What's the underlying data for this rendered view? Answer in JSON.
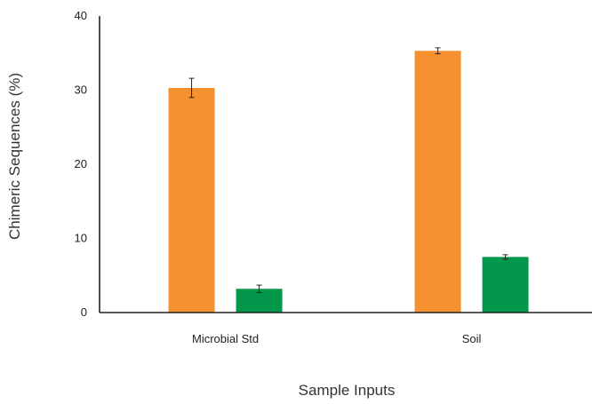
{
  "chart_data": {
    "type": "bar",
    "title": "",
    "xlabel": "Sample Inputs",
    "ylabel": "Chimeric Sequences (%)",
    "ylim": [
      0,
      40
    ],
    "yticks": [
      "0",
      "10",
      "20",
      "30",
      "40"
    ],
    "categories": [
      "Microbial Std",
      "Soil"
    ],
    "series": [
      {
        "color": "#F5922F",
        "values": [
          30.3,
          35.3
        ],
        "errors": [
          1.3,
          0.4
        ]
      },
      {
        "color": "#02974A",
        "values": [
          3.2,
          7.5
        ],
        "errors": [
          0.5,
          0.3
        ]
      }
    ],
    "grid": false,
    "legend": "none"
  }
}
